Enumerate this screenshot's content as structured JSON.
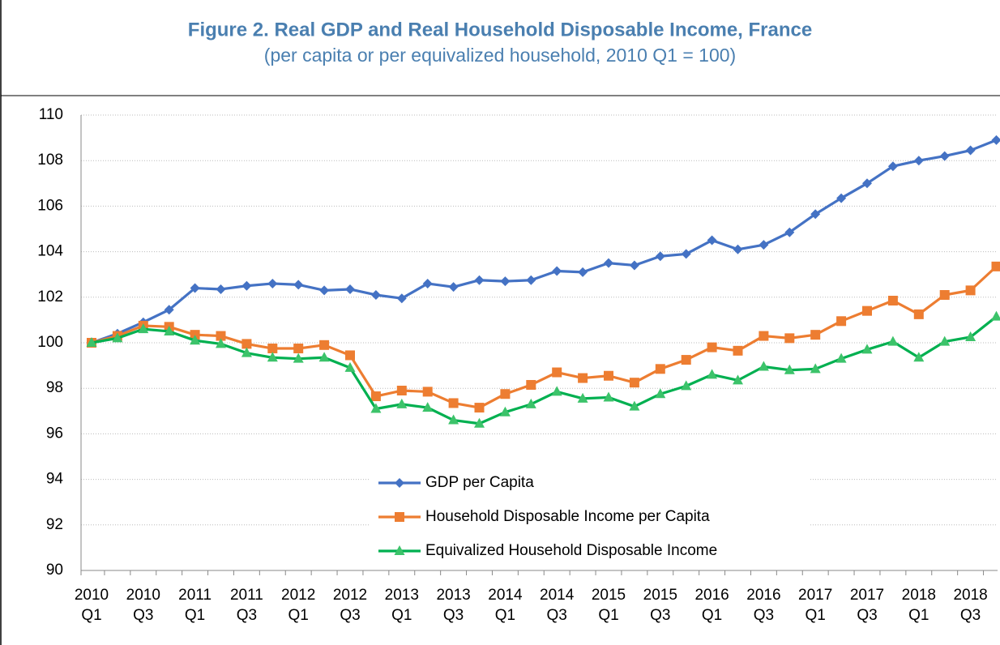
{
  "chart_data": {
    "type": "line",
    "title": "Figure 2. Real GDP and Real Household Disposable Income, France",
    "subtitle": "(per capita or per equivalized household, 2010 Q1 = 100)",
    "categories": [
      "2010 Q1",
      null,
      "2010 Q3",
      null,
      "2011 Q1",
      null,
      "2011 Q3",
      null,
      "2012 Q1",
      null,
      "2012 Q3",
      null,
      "2013 Q1",
      null,
      "2013 Q3",
      null,
      "2014 Q1",
      null,
      "2014 Q3",
      null,
      "2015 Q1",
      null,
      "2015 Q3",
      null,
      "2016 Q1",
      null,
      "2016 Q3",
      null,
      "2017 Q1",
      null,
      "2017 Q3",
      null,
      "2018 Q1",
      null,
      "2018 Q3",
      null
    ],
    "series": [
      {
        "name": "GDP per Capita",
        "color": "#4472c4",
        "marker": "diamond",
        "values": [
          100,
          100.4,
          100.9,
          101.45,
          102.4,
          102.35,
          102.5,
          102.6,
          102.55,
          102.3,
          102.35,
          102.1,
          101.95,
          102.6,
          102.45,
          102.75,
          102.7,
          102.75,
          103.15,
          103.1,
          103.5,
          103.4,
          103.8,
          103.9,
          104.5,
          104.1,
          104.3,
          104.85,
          105.65,
          106.35,
          107.0,
          107.75,
          108.0,
          108.2,
          108.45,
          108.9
        ]
      },
      {
        "name": "Household Disposable Income per Capita",
        "color": "#ed7d31",
        "marker": "square",
        "values": [
          100,
          100.3,
          100.75,
          100.7,
          100.35,
          100.3,
          99.95,
          99.75,
          99.75,
          99.9,
          99.45,
          97.65,
          97.9,
          97.85,
          97.35,
          97.15,
          97.75,
          98.15,
          98.7,
          98.45,
          98.55,
          98.25,
          98.85,
          99.25,
          99.8,
          99.65,
          100.3,
          100.2,
          100.35,
          100.95,
          101.4,
          101.85,
          101.25,
          102.1,
          102.3,
          103.35
        ]
      },
      {
        "name": "Equivalized Household Disposable Income",
        "color": "#00b050",
        "marker": "triangle",
        "values": [
          100,
          100.2,
          100.6,
          100.5,
          100.1,
          99.95,
          99.55,
          99.35,
          99.3,
          99.35,
          98.9,
          97.1,
          97.3,
          97.15,
          96.6,
          96.45,
          96.95,
          97.3,
          97.85,
          97.55,
          97.6,
          97.2,
          97.75,
          98.1,
          98.6,
          98.35,
          98.95,
          98.8,
          98.85,
          99.3,
          99.7,
          100.05,
          99.35,
          100.05,
          100.25,
          101.15
        ]
      }
    ],
    "ylim": [
      90,
      110
    ],
    "yticks": [
      90,
      92,
      94,
      96,
      98,
      100,
      102,
      104,
      106,
      108,
      110
    ],
    "grid": true,
    "legend": "lower-center"
  }
}
